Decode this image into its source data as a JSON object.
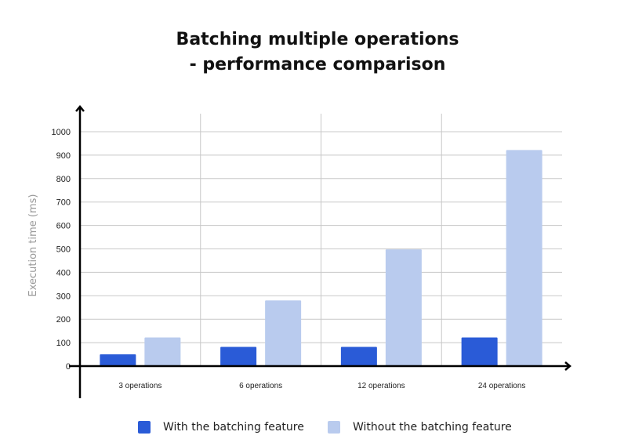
{
  "chart_data": {
    "type": "bar",
    "title_line1": "Batching multiple operations",
    "title_line2": "- performance comparison",
    "xlabel": "",
    "ylabel": "Execution time (ms)",
    "ylim": [
      0,
      1000
    ],
    "yticks": [
      "0",
      "100",
      "200",
      "300",
      "400",
      "500",
      "600",
      "700",
      "800",
      "900",
      "1000"
    ],
    "categories": [
      "3 operations",
      "6 operations",
      "12 operations",
      "24 operations"
    ],
    "series": [
      {
        "name": "With the batching feature",
        "color": "#2a5bd7",
        "values": [
          50,
          82,
          82,
          122
        ]
      },
      {
        "name": "Without the batching feature",
        "color": "#b9cbee",
        "values": [
          122,
          280,
          498,
          922
        ]
      }
    ],
    "grid": true,
    "legend_position": "bottom"
  }
}
